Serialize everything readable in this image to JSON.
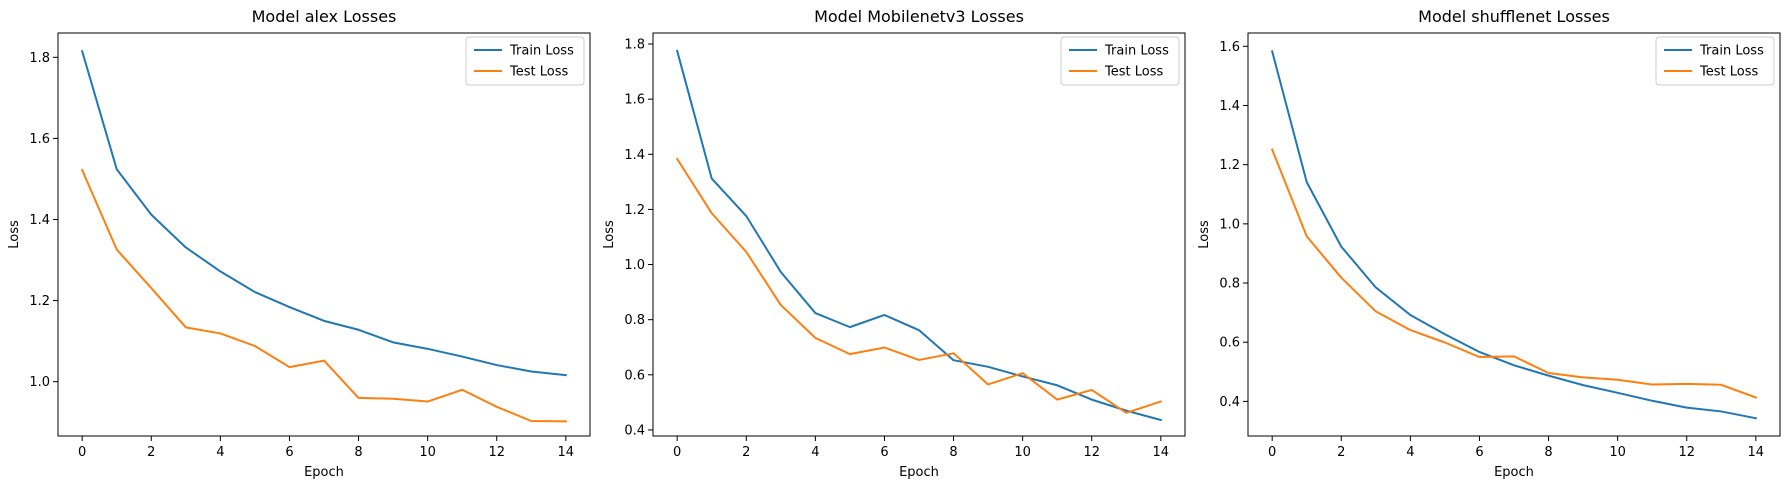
{
  "chart_data": [
    {
      "type": "line",
      "title": "Model alex Losses",
      "xlabel": "Epoch",
      "ylabel": "Loss",
      "x": [
        0,
        1,
        2,
        3,
        4,
        5,
        6,
        7,
        8,
        9,
        10,
        11,
        12,
        13,
        14
      ],
      "xlim": [
        -0.7,
        14.7
      ],
      "ylim": [
        0.866,
        1.86
      ],
      "xticks": [
        0,
        2,
        4,
        6,
        8,
        10,
        12,
        14
      ],
      "yticks": [
        1.0,
        1.2,
        1.4,
        1.6,
        1.8
      ],
      "ytick_labels": [
        "1.0",
        "1.2",
        "1.4",
        "1.6",
        "1.8"
      ],
      "grid": false,
      "legend_position": "upper right",
      "series": [
        {
          "name": "Train Loss",
          "color": "#1f77b4",
          "values": [
            1.815,
            1.524,
            1.412,
            1.331,
            1.272,
            1.221,
            1.184,
            1.15,
            1.128,
            1.097,
            1.081,
            1.062,
            1.041,
            1.025,
            1.016
          ]
        },
        {
          "name": "Test Loss",
          "color": "#ff7f0e",
          "values": [
            1.522,
            1.326,
            1.231,
            1.134,
            1.119,
            1.088,
            1.036,
            1.052,
            0.96,
            0.958,
            0.951,
            0.98,
            0.938,
            0.903,
            0.902
          ]
        }
      ]
    },
    {
      "type": "line",
      "title": "Model Mobilenetv3 Losses",
      "xlabel": "Epoch",
      "ylabel": "Loss",
      "x": [
        0,
        1,
        2,
        3,
        4,
        5,
        6,
        7,
        8,
        9,
        10,
        11,
        12,
        13,
        14
      ],
      "xlim": [
        -0.7,
        14.7
      ],
      "ylim": [
        0.378,
        1.84
      ],
      "xticks": [
        0,
        2,
        4,
        6,
        8,
        10,
        12,
        14
      ],
      "yticks": [
        0.4,
        0.6,
        0.8,
        1.0,
        1.2,
        1.4,
        1.6,
        1.8
      ],
      "ytick_labels": [
        "0.4",
        "0.6",
        "0.8",
        "1.0",
        "1.2",
        "1.4",
        "1.6",
        "1.8"
      ],
      "grid": false,
      "legend_position": "upper right",
      "series": [
        {
          "name": "Train Loss",
          "color": "#1f77b4",
          "values": [
            1.775,
            1.312,
            1.176,
            0.973,
            0.824,
            0.773,
            0.817,
            0.762,
            0.653,
            0.629,
            0.594,
            0.562,
            0.51,
            0.47,
            0.436
          ]
        },
        {
          "name": "Test Loss",
          "color": "#ff7f0e",
          "values": [
            1.383,
            1.186,
            1.046,
            0.853,
            0.734,
            0.675,
            0.699,
            0.654,
            0.678,
            0.565,
            0.606,
            0.51,
            0.545,
            0.462,
            0.503
          ]
        }
      ]
    },
    {
      "type": "line",
      "title": "Model shufflenet Losses",
      "xlabel": "Epoch",
      "ylabel": "Loss",
      "x": [
        0,
        1,
        2,
        3,
        4,
        5,
        6,
        7,
        8,
        9,
        10,
        11,
        12,
        13,
        14
      ],
      "xlim": [
        -0.7,
        14.7
      ],
      "ylim": [
        0.283,
        1.645
      ],
      "xticks": [
        0,
        2,
        4,
        6,
        8,
        10,
        12,
        14
      ],
      "yticks": [
        0.4,
        0.6,
        0.8,
        1.0,
        1.2,
        1.4,
        1.6
      ],
      "ytick_labels": [
        "0.4",
        "0.6",
        "0.8",
        "1.0",
        "1.2",
        "1.4",
        "1.6"
      ],
      "grid": false,
      "legend_position": "upper right",
      "series": [
        {
          "name": "Train Loss",
          "color": "#1f77b4",
          "values": [
            1.583,
            1.141,
            0.923,
            0.785,
            0.692,
            0.627,
            0.567,
            0.522,
            0.487,
            0.455,
            0.429,
            0.402,
            0.379,
            0.366,
            0.343
          ]
        },
        {
          "name": "Test Loss",
          "color": "#ff7f0e",
          "values": [
            1.251,
            0.958,
            0.818,
            0.704,
            0.641,
            0.599,
            0.55,
            0.552,
            0.496,
            0.481,
            0.473,
            0.457,
            0.459,
            0.456,
            0.413
          ]
        }
      ]
    }
  ]
}
